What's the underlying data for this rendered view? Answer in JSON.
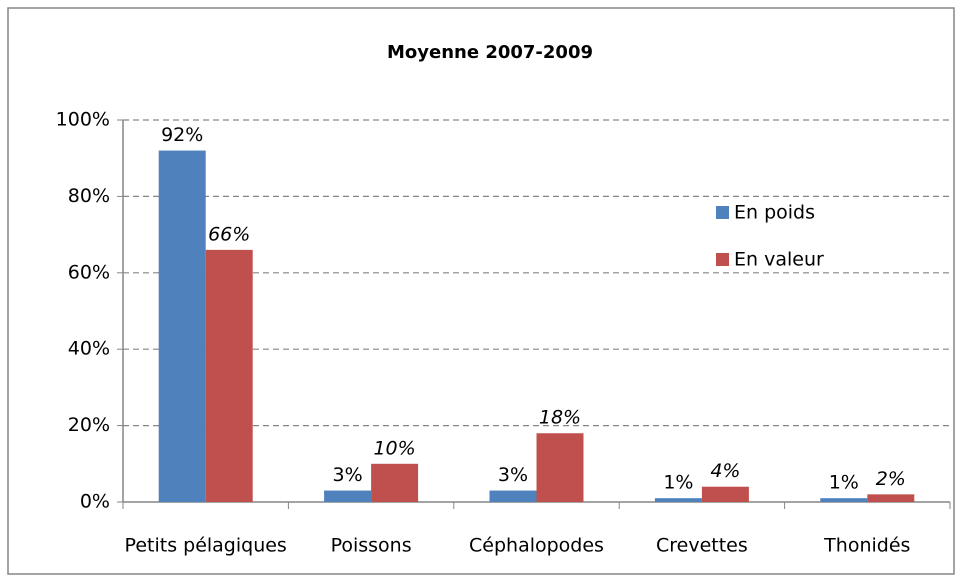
{
  "chart_data": {
    "type": "bar",
    "title": "Moyenne 2007-2009",
    "categories": [
      "Petits pélagiques",
      "Poissons",
      "Céphalopodes",
      "Crevettes",
      "Thonidés"
    ],
    "series": [
      {
        "name": "En poids",
        "color": "#4f81bd",
        "values": [
          92,
          3,
          3,
          1,
          1
        ],
        "value_labels": [
          "92%",
          "3%",
          "3%",
          "1%",
          "1%"
        ]
      },
      {
        "name": "En valeur",
        "color": "#c0504d",
        "values": [
          66,
          10,
          18,
          4,
          2
        ],
        "value_labels": [
          "66%",
          "10%",
          "18%",
          "4%",
          "2%"
        ]
      }
    ],
    "ylim": [
      0,
      100
    ],
    "yticks": [
      {
        "value": 0,
        "label": "0%"
      },
      {
        "value": 20,
        "label": "20%"
      },
      {
        "value": 40,
        "label": "40%"
      },
      {
        "value": 60,
        "label": "60%"
      },
      {
        "value": 80,
        "label": "80%"
      },
      {
        "value": 100,
        "label": "100%"
      }
    ],
    "grid": true,
    "legend": "right"
  }
}
